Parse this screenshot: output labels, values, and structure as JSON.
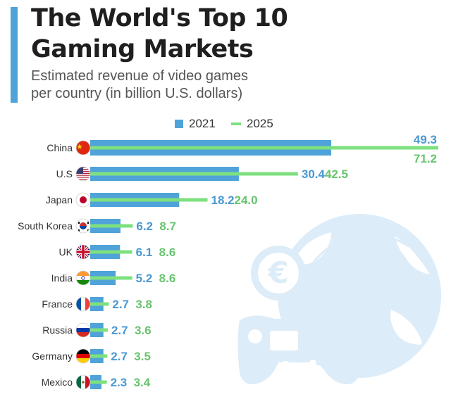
{
  "header": {
    "title_line1": "The World's Top 10",
    "title_line2": "Gaming Markets",
    "subtitle_line1": "Estimated revenue of video games",
    "subtitle_line2": "per country (in billion U.S. dollars)"
  },
  "colors": {
    "accent": "#4fa3d9",
    "bar2021": "#4fa3d9",
    "bar2025": "#7ee07f",
    "label2021": "#4a98d2",
    "label2025": "#68c46d",
    "illustration": "#dcecf8"
  },
  "chart_data": {
    "type": "bar",
    "orientation": "horizontal",
    "title": "The World's Top 10 Gaming Markets",
    "subtitle": "Estimated revenue of video games per country (in billion U.S. dollars)",
    "categories": [
      "China",
      "U.S",
      "Japan",
      "South Korea",
      "UK",
      "India",
      "France",
      "Russia",
      "Germany",
      "Mexico"
    ],
    "series": [
      {
        "name": "2021",
        "values": [
          49.3,
          30.4,
          18.2,
          6.2,
          6.1,
          5.2,
          2.7,
          2.7,
          2.7,
          2.3
        ]
      },
      {
        "name": "2025",
        "values": [
          71.2,
          42.5,
          24.0,
          8.7,
          8.6,
          8.6,
          3.8,
          3.6,
          3.5,
          3.4
        ]
      }
    ],
    "value_labels": {
      "2021": [
        "49.3",
        "30.4",
        "18.2",
        "6.2",
        "6.1",
        "5.2",
        "2.7",
        "2.7",
        "2.7",
        "2.3"
      ],
      "2025": [
        "71.2",
        "42.5",
        "24.0",
        "8.7",
        "8.6",
        "8.6",
        "3.8",
        "3.6",
        "3.5",
        "3.4"
      ]
    },
    "flags": [
      "china-flag-icon",
      "usa-flag-icon",
      "japan-flag-icon",
      "south-korea-flag-icon",
      "uk-flag-icon",
      "india-flag-icon",
      "france-flag-icon",
      "russia-flag-icon",
      "germany-flag-icon",
      "mexico-flag-icon"
    ],
    "legend": {
      "entries": [
        "2021",
        "2025"
      ],
      "placement": "top-center"
    },
    "xlim": [
      0,
      71.2
    ],
    "grid": false,
    "xlabel": "",
    "ylabel": ""
  }
}
